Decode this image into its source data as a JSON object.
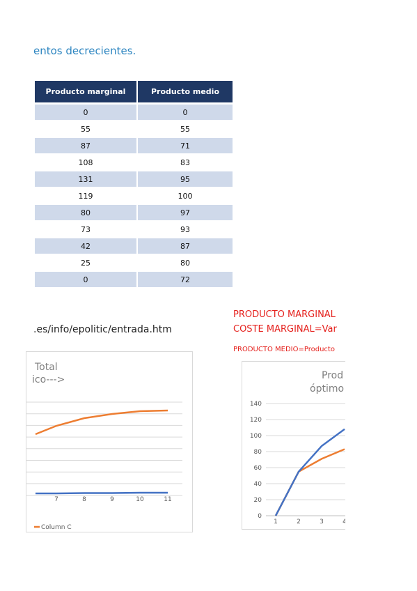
{
  "heading": "entos decrecientes.",
  "table": {
    "headers": [
      "Producto marginal",
      "Producto medio"
    ],
    "marginal": [
      "0",
      "55",
      "87",
      "108",
      "131",
      "119",
      "80",
      "73",
      "42",
      "25",
      "0"
    ],
    "medio": [
      "0",
      "55",
      "71",
      "83",
      "95",
      "100",
      "97",
      "93",
      "87",
      "80",
      "72"
    ]
  },
  "url_text": ".es/info/epolitic/entrada.htm",
  "notes": {
    "line1": "PRODUCTO MARGINAL",
    "line2": "COSTE MARGINAL=Var",
    "line3": "PRODUCTO MEDIO=Producto"
  },
  "colors": {
    "blue": "#4472c4",
    "orange": "#ed7d31",
    "header": "#1f3864",
    "band": "#cfd9ea"
  },
  "chart_data": [
    {
      "type": "line",
      "title": "Total\nico--->",
      "x": [
        7,
        8,
        9,
        10,
        11
      ],
      "series": [
        {
          "name": "",
          "values": [
            null,
            null,
            null,
            null,
            null
          ]
        },
        {
          "name": "Column C",
          "values": [
            null,
            null,
            null,
            null,
            null
          ]
        }
      ],
      "legend": "bottom-left"
    },
    {
      "type": "line",
      "title": "Prod\nóptimo",
      "x": [
        1,
        2,
        3,
        4
      ],
      "ylim": [
        0,
        140
      ],
      "yticks": [
        0,
        20,
        40,
        60,
        80,
        100,
        120,
        140
      ],
      "series": [
        {
          "name": "",
          "values": [
            0,
            55,
            87,
            108
          ]
        },
        {
          "name": "",
          "values": [
            0,
            55,
            71,
            83
          ]
        }
      ]
    }
  ]
}
